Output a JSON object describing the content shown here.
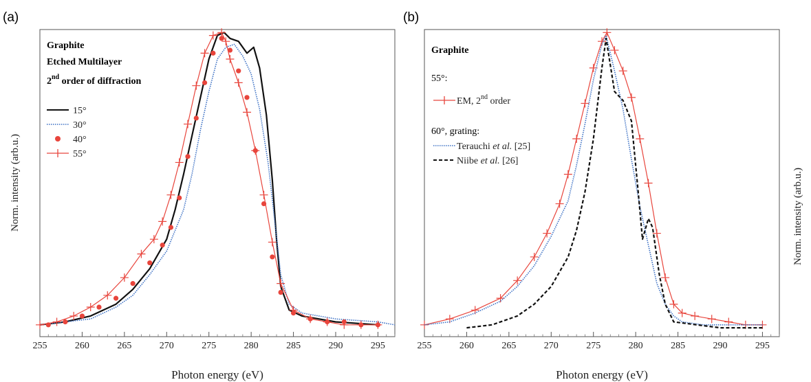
{
  "colors": {
    "red": "#e8453c",
    "blue": "#3a6fc4",
    "black": "#111111"
  },
  "figure": {
    "side_ylabel": "Norm. intensity (arb.u.)"
  },
  "chart_data": [
    {
      "type": "line",
      "panel_label": "(a)",
      "title": "",
      "annotation_lines": [
        "Graphite",
        "Etched Multilayer"
      ],
      "annotation_order": {
        "prefix": "2",
        "sup": "nd",
        "suffix": " order of diffraction"
      },
      "xlabel": "Photon energy (eV)",
      "ylabel": "Norm. intensity (arb.u.)",
      "xlim": [
        255,
        297
      ],
      "ylim": [
        -0.03,
        1.01
      ],
      "xticks": [
        255,
        260,
        265,
        270,
        275,
        280,
        285,
        290,
        295
      ],
      "series": [
        {
          "name": "15°",
          "style": "line",
          "color": "#111111",
          "x": [
            255,
            258,
            261,
            264,
            266,
            268,
            270,
            271,
            272,
            273,
            274,
            275,
            276,
            276.8,
            277.5,
            278.5,
            279.5,
            280.3,
            281,
            281.8,
            282.5,
            283,
            283.5,
            284.5,
            286,
            290,
            295
          ],
          "y": [
            0.01,
            0.02,
            0.04,
            0.08,
            0.13,
            0.2,
            0.3,
            0.4,
            0.52,
            0.65,
            0.78,
            0.91,
            0.99,
            1.0,
            0.98,
            0.97,
            0.93,
            0.95,
            0.88,
            0.72,
            0.5,
            0.3,
            0.14,
            0.06,
            0.04,
            0.02,
            0.01
          ]
        },
        {
          "name": "30°",
          "style": "dotted",
          "color": "#3a6fc4",
          "x": [
            255,
            258,
            261,
            264,
            266,
            268,
            270,
            272,
            273,
            274,
            275,
            276,
            277,
            278,
            279,
            280,
            281,
            282,
            282.8,
            283.5,
            284.5,
            286,
            290,
            295,
            297
          ],
          "y": [
            0.01,
            0.02,
            0.03,
            0.07,
            0.11,
            0.18,
            0.26,
            0.4,
            0.52,
            0.67,
            0.8,
            0.91,
            0.95,
            0.96,
            0.92,
            0.86,
            0.74,
            0.56,
            0.36,
            0.18,
            0.08,
            0.05,
            0.03,
            0.02,
            0.01
          ]
        },
        {
          "name": "40°",
          "style": "dots",
          "color": "#e8453c",
          "x": [
            256,
            258,
            260,
            262,
            264,
            266,
            268,
            269.5,
            270.5,
            271.5,
            272.5,
            273.5,
            274.5,
            275.5,
            276.5,
            277.5,
            278.5,
            279.5,
            280.5,
            281.5,
            282.5,
            283.5,
            285,
            287,
            289,
            291,
            293,
            295
          ],
          "y": [
            0.01,
            0.02,
            0.04,
            0.07,
            0.1,
            0.15,
            0.22,
            0.28,
            0.34,
            0.44,
            0.58,
            0.71,
            0.83,
            0.93,
            0.98,
            0.94,
            0.87,
            0.78,
            0.6,
            0.42,
            0.24,
            0.12,
            0.05,
            0.03,
            0.02,
            0.02,
            0.01,
            0.01
          ]
        },
        {
          "name": "55°",
          "style": "plus",
          "color": "#e8453c",
          "x": [
            255,
            257,
            259,
            261,
            263,
            265,
            267,
            268.5,
            269.5,
            270.5,
            271.5,
            272.5,
            273.5,
            274.5,
            275.5,
            276.5,
            277,
            277.5,
            278.5,
            279.5,
            280.5,
            281.5,
            282.5,
            283.5,
            285,
            287,
            289,
            291,
            293,
            295
          ],
          "y": [
            0.01,
            0.02,
            0.04,
            0.07,
            0.11,
            0.17,
            0.25,
            0.3,
            0.36,
            0.45,
            0.56,
            0.69,
            0.82,
            0.93,
            0.99,
            1.0,
            0.97,
            0.91,
            0.83,
            0.73,
            0.6,
            0.45,
            0.29,
            0.15,
            0.06,
            0.03,
            0.02,
            0.01,
            0.01,
            0.01
          ]
        }
      ]
    },
    {
      "type": "line",
      "panel_label": "(b)",
      "title": "",
      "annotation_lines": [
        "Graphite"
      ],
      "annotation_order": {
        "prefix": "",
        "sup": "",
        "suffix": ""
      },
      "legend_group_1": "55°:",
      "legend_group_2": "60°, grating:",
      "xlabel": "Photon energy (eV)",
      "ylabel": "Norm. intensity (arb.u.)",
      "xlim": [
        255,
        297
      ],
      "ylim": [
        -0.03,
        1.01
      ],
      "xticks": [
        255,
        260,
        265,
        270,
        275,
        280,
        285,
        290,
        295
      ],
      "series": [
        {
          "name": "EM, 2nd order",
          "legend_main": "EM, 2",
          "legend_sup": "nd",
          "legend_tail": " order",
          "style": "plus",
          "color": "#e8453c",
          "x": [
            255,
            258,
            261,
            264,
            266,
            268,
            269.5,
            271,
            272,
            273,
            274,
            275,
            276,
            276.6,
            277.5,
            278.5,
            279.5,
            280.5,
            281.5,
            282.5,
            283.5,
            284.5,
            285.5,
            287,
            289,
            291,
            293,
            295
          ],
          "y": [
            0.01,
            0.03,
            0.06,
            0.1,
            0.16,
            0.24,
            0.32,
            0.42,
            0.52,
            0.64,
            0.76,
            0.88,
            0.97,
            1.0,
            0.94,
            0.87,
            0.78,
            0.64,
            0.49,
            0.32,
            0.17,
            0.08,
            0.05,
            0.04,
            0.03,
            0.02,
            0.01,
            0.01
          ]
        },
        {
          "name": "Terauchi et al. [25]",
          "legend_main": "Terauchi ",
          "legend_italic": "et al.",
          "legend_tail": " [25]",
          "style": "dotted",
          "color": "#3a6fc4",
          "x": [
            255,
            258,
            261,
            264,
            266,
            268,
            270,
            272,
            273,
            274,
            275,
            276,
            276.5,
            277.5,
            278.5,
            279.5,
            280.5,
            281.5,
            282.5,
            283.5,
            284.5,
            285.5,
            288,
            292,
            295
          ],
          "y": [
            0.01,
            0.02,
            0.05,
            0.09,
            0.14,
            0.21,
            0.31,
            0.43,
            0.55,
            0.69,
            0.84,
            0.96,
            0.99,
            0.87,
            0.74,
            0.57,
            0.41,
            0.28,
            0.15,
            0.08,
            0.04,
            0.02,
            0.01,
            0.01,
            0.01
          ]
        },
        {
          "name": "Niibe et al. [26]",
          "legend_main": "Niibe ",
          "legend_italic": "et al.",
          "legend_tail": " [26]",
          "style": "dashed",
          "color": "#111111",
          "x": [
            260,
            263,
            266,
            268,
            270,
            272,
            273,
            274,
            275,
            276,
            276.5,
            277.5,
            278.5,
            279.5,
            280.3,
            280.8,
            281.5,
            282,
            282.8,
            283.5,
            284.5,
            290,
            295
          ],
          "y": [
            0.0,
            0.01,
            0.04,
            0.08,
            0.14,
            0.24,
            0.33,
            0.46,
            0.64,
            0.88,
            0.98,
            0.8,
            0.77,
            0.7,
            0.46,
            0.3,
            0.37,
            0.34,
            0.18,
            0.08,
            0.02,
            0.0,
            0.0
          ]
        }
      ]
    }
  ]
}
